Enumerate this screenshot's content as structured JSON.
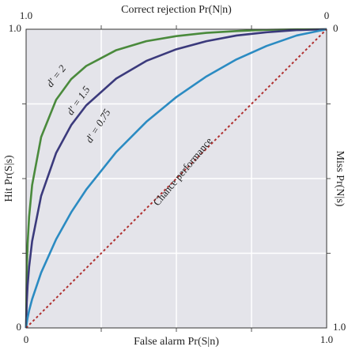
{
  "chart_data": {
    "type": "line",
    "xlabel": "False alarm Pr(S|n)",
    "ylabel": "Hit Pr(S|s)",
    "x2label": "Correct rejection Pr(N|n)",
    "y2label": "Miss Pr(N|s)",
    "x": [
      0,
      0.002,
      0.005,
      0.01,
      0.02,
      0.05,
      0.1,
      0.15,
      0.2,
      0.3,
      0.4,
      0.5,
      0.6,
      0.7,
      0.8,
      0.9,
      1
    ],
    "series": [
      {
        "name": "d′ = 2",
        "color": "#4a8a3c",
        "values": [
          0,
          0.19,
          0.282,
          0.372,
          0.478,
          0.639,
          0.764,
          0.833,
          0.877,
          0.93,
          0.96,
          0.977,
          0.988,
          0.994,
          0.998,
          0.9995,
          1
        ]
      },
      {
        "name": "d′ = 1.5",
        "color": "#3b3a7c",
        "values": [
          0,
          0.084,
          0.141,
          0.204,
          0.29,
          0.442,
          0.586,
          0.679,
          0.745,
          0.835,
          0.894,
          0.933,
          0.96,
          0.979,
          0.99,
          0.997,
          1
        ]
      },
      {
        "name": "d′ = 0.75",
        "color": "#2b8bc2",
        "values": [
          0,
          0.0167,
          0.034,
          0.058,
          0.096,
          0.185,
          0.297,
          0.387,
          0.463,
          0.589,
          0.69,
          0.773,
          0.842,
          0.899,
          0.944,
          0.979,
          1
        ]
      },
      {
        "name": "Chance performance",
        "color": "#b03030",
        "dashed": true,
        "values": [
          0,
          0.002,
          0.005,
          0.01,
          0.02,
          0.05,
          0.1,
          0.15,
          0.2,
          0.3,
          0.4,
          0.5,
          0.6,
          0.7,
          0.8,
          0.9,
          1
        ]
      }
    ],
    "xlim": [
      0,
      1
    ],
    "ylim": [
      0,
      1
    ],
    "xticks": [
      0,
      {
        "value": 1,
        "label": "1.0"
      }
    ],
    "yticks": [
      0,
      {
        "value": 1,
        "label": "1.0"
      }
    ],
    "x2lim": [
      1,
      0
    ],
    "x2ticks": [
      {
        "value": 1,
        "label": "1.0"
      },
      0
    ],
    "y2lim": [
      1,
      0
    ],
    "y2ticks": [
      0,
      {
        "value": 1,
        "label": "1.0"
      }
    ],
    "xgrid": [
      0.25,
      0.5,
      0.75
    ],
    "ygrid": [
      0.25,
      0.5,
      0.75
    ],
    "grid": true
  }
}
